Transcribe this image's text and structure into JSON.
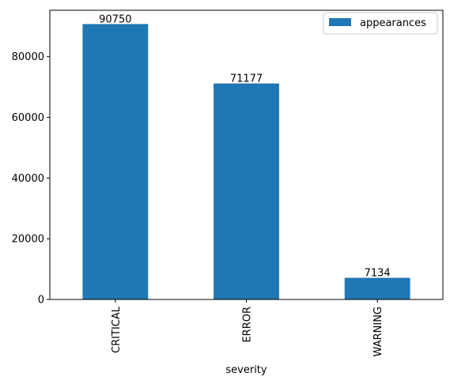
{
  "chart_data": {
    "type": "bar",
    "categories": [
      "CRITICAL",
      "ERROR",
      "WARNING"
    ],
    "series": [
      {
        "name": "appearances",
        "values": [
          90750,
          71177,
          7134
        ]
      }
    ],
    "data_labels": [
      "90750",
      "71177",
      "7134"
    ],
    "xlabel": "severity",
    "ylabel": "",
    "ylim": [
      0,
      95290
    ],
    "yticks": [
      0,
      20000,
      40000,
      60000,
      80000
    ],
    "ytick_labels": [
      "0",
      "20000",
      "40000",
      "60000",
      "80000"
    ],
    "grid": false,
    "legend": {
      "position": "top-right",
      "entries": [
        "appearances"
      ]
    },
    "colors": {
      "bar": "#1f77b4",
      "axes": "#000000",
      "background": "#ffffff"
    }
  }
}
